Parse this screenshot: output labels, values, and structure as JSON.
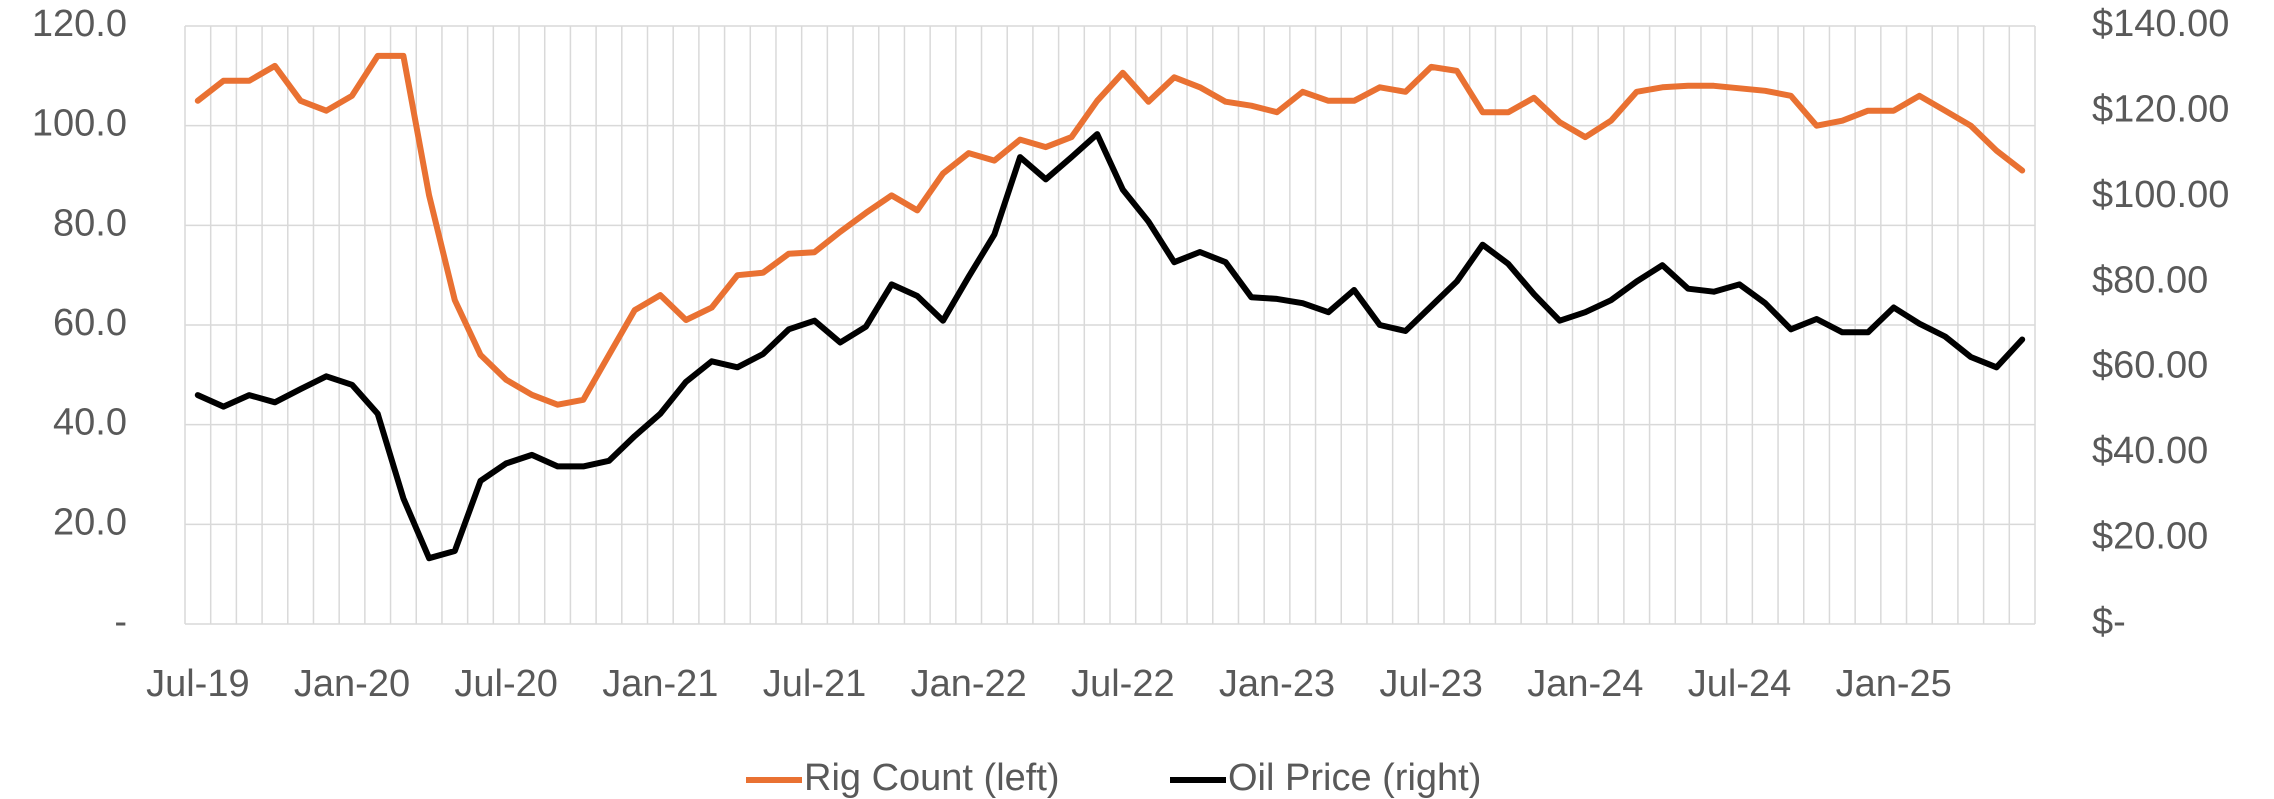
{
  "chart_data": {
    "type": "line",
    "categories": [
      "Jul-19",
      null,
      null,
      null,
      null,
      null,
      "Jan-20",
      null,
      null,
      null,
      null,
      null,
      "Jul-20",
      null,
      null,
      null,
      null,
      null,
      "Jan-21",
      null,
      null,
      null,
      null,
      null,
      "Jul-21",
      null,
      null,
      null,
      null,
      null,
      "Jan-22",
      null,
      null,
      null,
      null,
      null,
      "Jul-22",
      null,
      null,
      null,
      null,
      null,
      "Jan-23",
      null,
      null,
      null,
      null,
      null,
      "Jul-23",
      null,
      null,
      null,
      null,
      null,
      "Jan-24",
      null,
      null,
      null,
      null,
      null,
      "Jul-24",
      null,
      null,
      null,
      null,
      null,
      "Jan-25",
      null,
      null,
      null,
      null,
      null
    ],
    "series": [
      {
        "name": "Rig Count (left)",
        "color": "#e97132",
        "axis": "y",
        "values": [
          105,
          109,
          109,
          112,
          105,
          103,
          106,
          114,
          114,
          86,
          65,
          54,
          49,
          46,
          44,
          45,
          54,
          63,
          66,
          61,
          63.5,
          70,
          70.5,
          74.3,
          74.6,
          78.7,
          82.5,
          86,
          83,
          90.4,
          94.5,
          93,
          97.2,
          95.7,
          97.7,
          105,
          110.6,
          104.8,
          109.7,
          107.7,
          104.8,
          104,
          102.7,
          106.8,
          105,
          105,
          107.7,
          106.8,
          111.8,
          111,
          102.7,
          102.7,
          105.6,
          100.7,
          97.7,
          101,
          106.8,
          107.7,
          108,
          108,
          107.5,
          107,
          106,
          100,
          101,
          103,
          103,
          106,
          103,
          100,
          95,
          91
        ]
      },
      {
        "name": "Oil Price (right)",
        "color": "#000000",
        "axis": "y2",
        "values": [
          53.6,
          50.9,
          53.6,
          51.9,
          55,
          58,
          56,
          49.2,
          29.4,
          15.4,
          17.1,
          33.5,
          37.6,
          39.6,
          36.9,
          36.9,
          38.2,
          44,
          49.2,
          56.7,
          61.5,
          60.1,
          63.2,
          69,
          71,
          65.9,
          69.6,
          79.5,
          76.8,
          71,
          81.3,
          91.2,
          109.3,
          104.1,
          109.3,
          114.7,
          101.7,
          94.2,
          84.7,
          87.1,
          84.7,
          76.5,
          76.1,
          75.1,
          73,
          78.2,
          70,
          68.6,
          74.4,
          80.2,
          88.8,
          84.3,
          77.2,
          71,
          73,
          75.8,
          80.2,
          84,
          78.5,
          77.8,
          79.5,
          75.1,
          69,
          71.4,
          68.3,
          68.3,
          74.1,
          70.3,
          67.3,
          62.5,
          60.1,
          66.6
        ]
      }
    ],
    "ylim": [
      0,
      120
    ],
    "yticks": [
      {
        "value": 0,
        "label": "-"
      },
      {
        "value": 20,
        "label": "20.0"
      },
      {
        "value": 40,
        "label": "40.0"
      },
      {
        "value": 60,
        "label": "60.0"
      },
      {
        "value": 80,
        "label": "80.0"
      },
      {
        "value": 100,
        "label": "100.0"
      },
      {
        "value": 120,
        "label": "120.0"
      }
    ],
    "y2lim": [
      0,
      140
    ],
    "y2ticks": [
      {
        "value": 0,
        "label": "$-"
      },
      {
        "value": 20,
        "label": "$20.00"
      },
      {
        "value": 40,
        "label": "$40.00"
      },
      {
        "value": 60,
        "label": "$60.00"
      },
      {
        "value": 80,
        "label": "$80.00"
      },
      {
        "value": 100,
        "label": "$100.00"
      },
      {
        "value": 120,
        "label": "$120.00"
      },
      {
        "value": 140,
        "label": "$140.00"
      }
    ],
    "grid": true,
    "legend": "bottom"
  }
}
